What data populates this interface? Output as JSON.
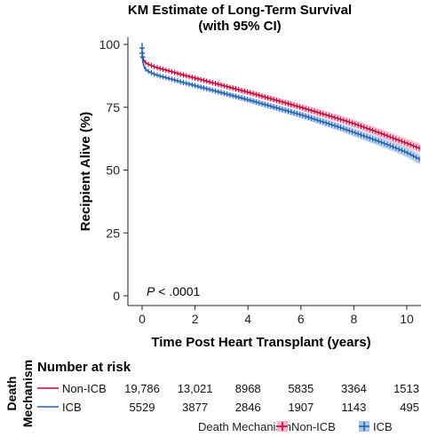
{
  "chart_data": {
    "type": "line",
    "title": [
      "KM Estimate of Long-Term Survival",
      "(with 95% CI)"
    ],
    "xlabel": "Time Post Heart Transplant (years)",
    "ylabel": "Recipient Alive (%)",
    "xlim": [
      -0.7,
      10.5
    ],
    "ylim": [
      -3,
      103
    ],
    "xticks": [
      0,
      2,
      4,
      6,
      8,
      10
    ],
    "yticks": [
      0,
      25,
      50,
      75,
      100
    ],
    "annotation": "P < .0001",
    "annotation_italic": "P",
    "annotation_rest": " < .0001",
    "series": [
      {
        "name": "Non-ICB",
        "color": "#c8003c",
        "band_color": "#f2b8c8",
        "x": [
          0,
          0.05,
          0.1,
          0.2,
          0.35,
          0.5,
          0.75,
          1,
          1.5,
          2,
          2.5,
          3,
          3.5,
          4,
          4.5,
          5,
          5.5,
          6,
          6.5,
          7,
          7.5,
          8,
          8.5,
          9,
          9.5,
          10,
          10.5
        ],
        "y": [
          96,
          94,
          93,
          92.3,
          91.6,
          91,
          90.2,
          89.5,
          88,
          86.6,
          85.2,
          83.8,
          82.4,
          81,
          79.5,
          78,
          76.5,
          75,
          73.4,
          71.8,
          70.2,
          68.5,
          66.6,
          64.7,
          62.7,
          60.7,
          58.6
        ]
      },
      {
        "name": "ICB",
        "color": "#2060b0",
        "band_color": "#a8c4e6",
        "x": [
          0,
          0.05,
          0.1,
          0.2,
          0.35,
          0.5,
          0.75,
          1,
          1.5,
          2,
          2.5,
          3,
          3.5,
          4,
          4.5,
          5,
          5.5,
          6,
          6.5,
          7,
          7.5,
          8,
          8.5,
          9,
          9.5,
          10,
          10.5
        ],
        "y": [
          95,
          92,
          90.5,
          89.5,
          88.7,
          88,
          87.2,
          86.5,
          85,
          83.6,
          82.2,
          80.8,
          79.4,
          78,
          76.5,
          75,
          73.5,
          72,
          70.3,
          68.6,
          66.9,
          65,
          63.1,
          61.2,
          59.2,
          57,
          54.2
        ]
      }
    ],
    "risk_table": {
      "header": "Number at risk",
      "side_title": [
        "Death",
        "Mechanism"
      ],
      "rows": [
        {
          "label": "Non-ICB",
          "color": "#c8003c",
          "values": [
            "19,786",
            "13,021",
            "8968",
            "5835",
            "3364",
            "1513"
          ]
        },
        {
          "label": "ICB",
          "color": "#2060b0",
          "values": [
            "5529",
            "3877",
            "2846",
            "1907",
            "1143",
            "495"
          ]
        }
      ]
    },
    "legend": {
      "title": "Death Mechanism",
      "items": [
        {
          "label": "Non-ICB",
          "color": "#c8003c",
          "fill": "#f2b8c8"
        },
        {
          "label": "ICB",
          "color": "#2060b0",
          "fill": "#a8c4e6"
        }
      ]
    }
  }
}
